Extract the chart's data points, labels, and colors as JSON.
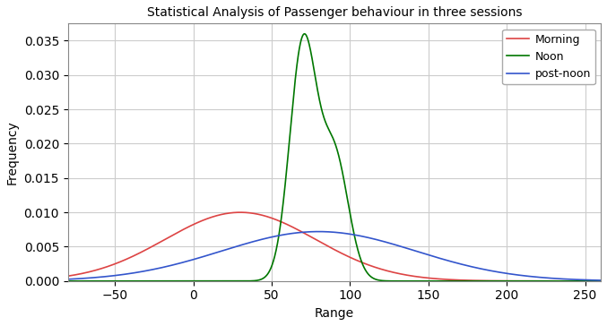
{
  "title": "Statistical Analysis of Passenger behaviour in three sessions",
  "xlabel": "Range",
  "ylabel": "Frequency",
  "xlim": [
    -80,
    260
  ],
  "ylim": [
    0,
    0.0375
  ],
  "legend_labels": [
    "Morning",
    "Noon",
    "post-noon"
  ],
  "legend_colors": [
    "#dd4444",
    "#007700",
    "#3355cc"
  ],
  "morning_mu": 30,
  "morning_sigma": 48,
  "morning_amp": 0.01,
  "noon_mu1": 70,
  "noon_sigma1": 8.5,
  "noon_amp1": 0.036,
  "noon_mu2": 90,
  "noon_sigma2": 9.0,
  "noon_amp2": 0.019,
  "postnoon_mu": 80,
  "postnoon_sigma": 62,
  "postnoon_amp": 0.0072,
  "grid_color": "#cccccc",
  "background_color": "#ffffff",
  "xticks": [
    -50,
    0,
    50,
    100,
    150,
    200,
    250
  ],
  "yticks": [
    0.0,
    0.005,
    0.01,
    0.015,
    0.02,
    0.025,
    0.03,
    0.035
  ]
}
